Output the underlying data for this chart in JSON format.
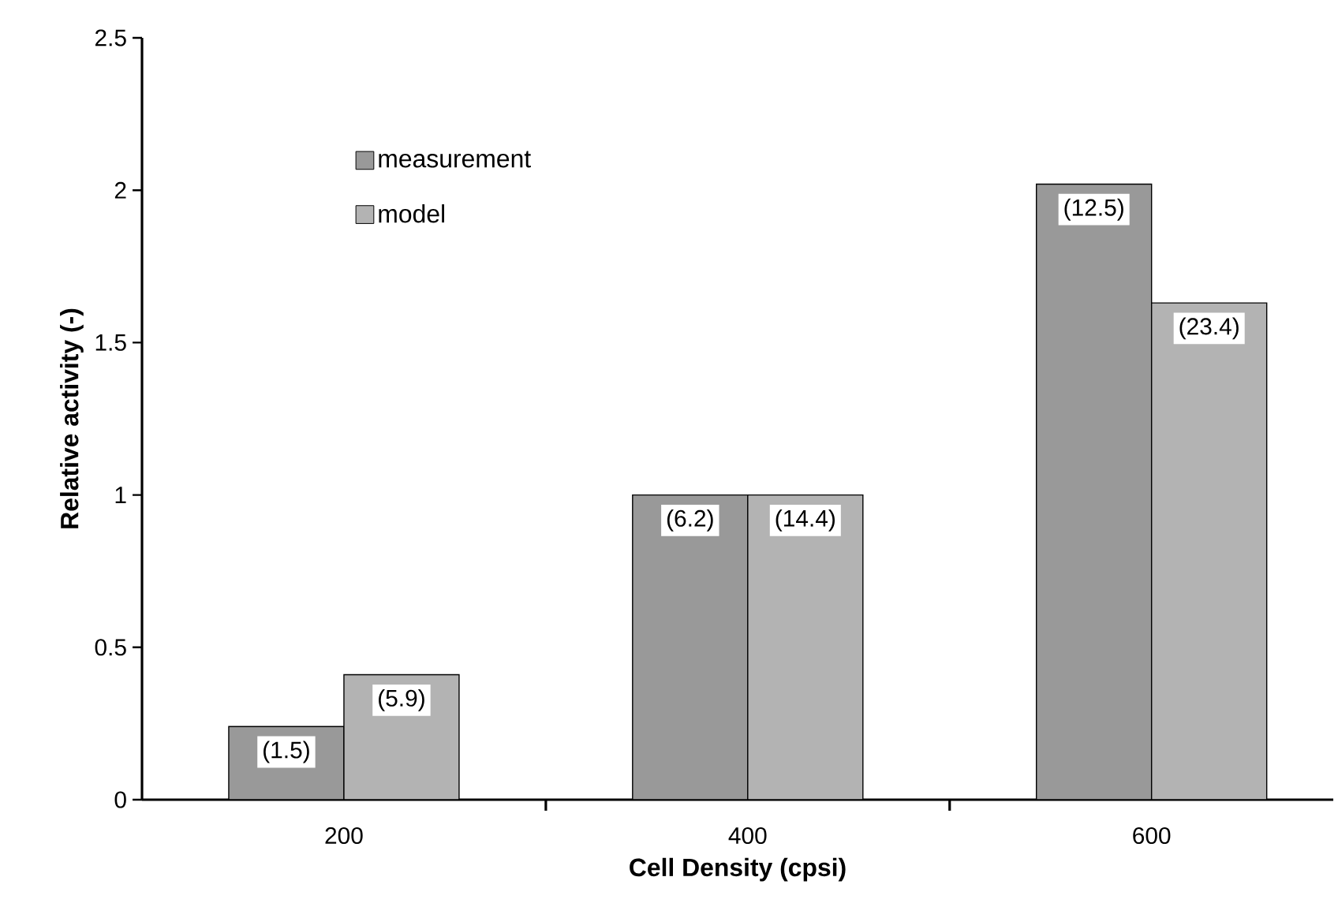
{
  "chart_data": {
    "type": "bar",
    "xlabel": "Cell Density (cpsi)",
    "ylabel": "Relative activity (-)",
    "categories": [
      "200",
      "400",
      "600"
    ],
    "series": [
      {
        "name": "measurement",
        "color": "#999999",
        "values": [
          0.24,
          1.0,
          2.02
        ]
      },
      {
        "name": "model",
        "color": "#b3b3b3",
        "values": [
          0.41,
          1.0,
          1.63
        ]
      }
    ],
    "annotations": [
      {
        "text": "(1.5)",
        "x": "200",
        "y": 0.24
      },
      {
        "text": "(6.2)",
        "x": "400",
        "y": 1.0
      },
      {
        "text": "(12.5)",
        "x": "600",
        "y": 2.02
      },
      {
        "text": "(5.9)",
        "x": "200",
        "y": 0.41
      },
      {
        "text": "(14.4)",
        "x": "400",
        "y": 1.0
      },
      {
        "text": "(23.4)",
        "x": "600",
        "y": 1.63
      }
    ],
    "ylim": [
      0,
      2.5
    ],
    "yticks": [
      0,
      0.5,
      1,
      1.5,
      2,
      2.5
    ],
    "legend": "top left"
  }
}
